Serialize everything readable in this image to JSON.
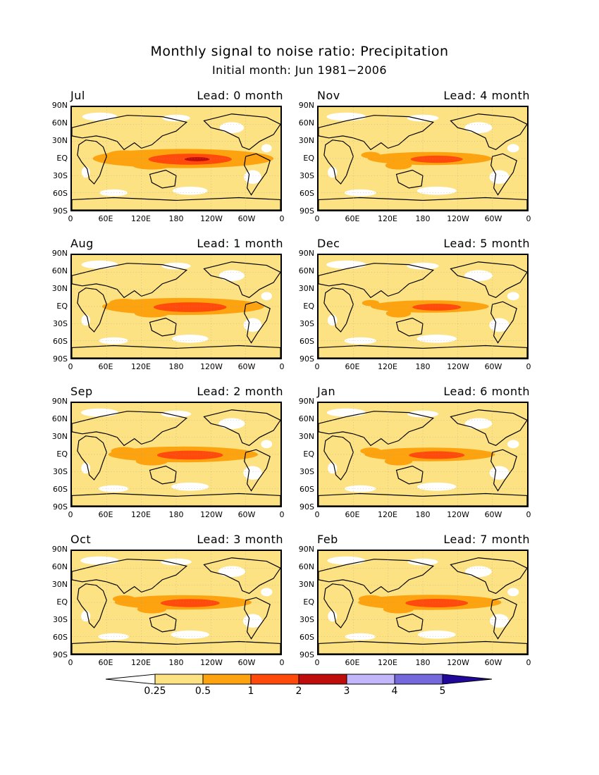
{
  "title": "Monthly signal to noise ratio: Precipitation",
  "subtitle": "Initial month: Jun 1981−2006",
  "y_ticks": [
    "90N",
    "60N",
    "30N",
    "EQ",
    "30S",
    "60S",
    "90S"
  ],
  "x_ticks": [
    "0",
    "60E",
    "120E",
    "180",
    "120W",
    "60W",
    "0"
  ],
  "colors": {
    "background_field": "#fce283",
    "class_colors": [
      "#ffffff",
      "#fce283",
      "#fda30f",
      "#ff4a0c",
      "#bf0d0b",
      "#c4b6fb",
      "#7568dc",
      "#22079b"
    ]
  },
  "chart_data": [
    {
      "type": "heatmap",
      "month": "Jul",
      "lead": "Lead: 0 month",
      "intensity": 1.0
    },
    {
      "type": "heatmap",
      "month": "Nov",
      "lead": "Lead: 4 month",
      "intensity": 0.55
    },
    {
      "type": "heatmap",
      "month": "Aug",
      "lead": "Lead: 1 month",
      "intensity": 0.85
    },
    {
      "type": "heatmap",
      "month": "Dec",
      "lead": "Lead: 5 month",
      "intensity": 0.5
    },
    {
      "type": "heatmap",
      "month": "Sep",
      "lead": "Lead: 2 month",
      "intensity": 0.75
    },
    {
      "type": "heatmap",
      "month": "Jan",
      "lead": "Lead: 6 month",
      "intensity": 0.6
    },
    {
      "type": "heatmap",
      "month": "Oct",
      "lead": "Lead: 3 month",
      "intensity": 0.65
    },
    {
      "type": "heatmap",
      "month": "Feb",
      "lead": "Lead: 7 month",
      "intensity": 0.7
    }
  ],
  "colorbar": {
    "labels": [
      "0.25",
      "0.5",
      "1",
      "2",
      "3",
      "4",
      "5"
    ]
  }
}
